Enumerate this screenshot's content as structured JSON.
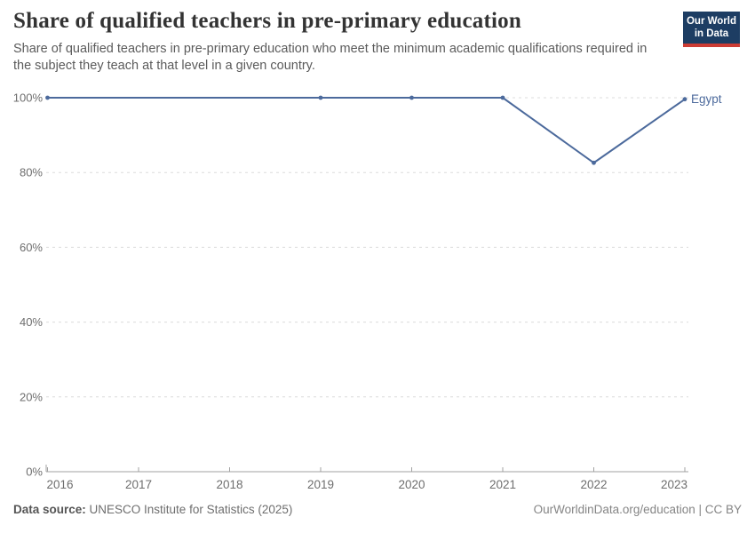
{
  "header": {
    "title": "Share of qualified teachers in pre-primary education",
    "subtitle": "Share of qualified teachers in pre-primary education who meet the minimum academic qualifications required in the subject they teach at that level in a given country."
  },
  "logo": {
    "line1": "Our World",
    "line2": "in Data",
    "bg_color": "#1d3d63",
    "accent_color": "#cc3c34"
  },
  "chart_data": {
    "type": "line",
    "title": "Share of qualified teachers in pre-primary education",
    "x": [
      2016,
      2019,
      2020,
      2021,
      2022,
      2023
    ],
    "series": [
      {
        "name": "Egypt",
        "color": "#4C6A9C",
        "values": [
          100,
          100,
          100,
          100,
          82.6,
          99.6
        ]
      }
    ],
    "x_ticks": [
      "2016",
      "2017",
      "2018",
      "2019",
      "2020",
      "2021",
      "2022",
      "2023"
    ],
    "y_ticks": [
      0,
      20,
      40,
      60,
      80,
      100
    ],
    "y_tick_suffix": "%",
    "xlim": [
      2016,
      2023
    ],
    "ylim": [
      0,
      100
    ],
    "grid": "horizontal-dashed",
    "legend_position": "line-end-label",
    "axis_label_color": "#6e6e6e",
    "gridline_color": "#dcdcdc",
    "axis_line_color": "#a1a1a1"
  },
  "footer": {
    "source_label": "Data source:",
    "source_text": " UNESCO Institute for Statistics (2025)",
    "right_text": "OurWorldinData.org/education | CC BY"
  }
}
